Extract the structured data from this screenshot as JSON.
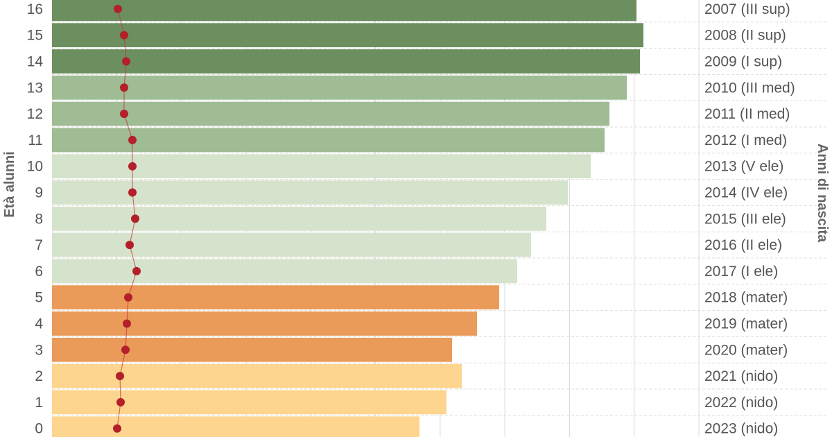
{
  "chart_data": {
    "type": "bar",
    "orientation": "horizontal",
    "left_axis_title": "Età alunni",
    "right_axis_title": "Anni di nascita",
    "rows": [
      {
        "age": "16",
        "birth": "2007 (III sup)",
        "value": 843,
        "line": 95,
        "group": "sup"
      },
      {
        "age": "15",
        "birth": "2008 (II sup)",
        "value": 853,
        "line": 104,
        "group": "sup"
      },
      {
        "age": "14",
        "birth": "2009 (I sup)",
        "value": 848,
        "line": 107,
        "group": "sup"
      },
      {
        "age": "13",
        "birth": "2010 (III med)",
        "value": 829,
        "line": 104,
        "group": "med"
      },
      {
        "age": "12",
        "birth": "2011 (II med)",
        "value": 804,
        "line": 104,
        "group": "med"
      },
      {
        "age": "11",
        "birth": "2012 (I med)",
        "value": 797,
        "line": 116,
        "group": "med"
      },
      {
        "age": "10",
        "birth": "2013 (V ele)",
        "value": 777,
        "line": 116,
        "group": "ele"
      },
      {
        "age": "9",
        "birth": "2014 (IV ele)",
        "value": 744,
        "line": 116,
        "group": "ele"
      },
      {
        "age": "8",
        "birth": "2015 (III ele)",
        "value": 713,
        "line": 120,
        "group": "ele"
      },
      {
        "age": "7",
        "birth": "2016 (II ele)",
        "value": 691,
        "line": 112,
        "group": "ele"
      },
      {
        "age": "6",
        "birth": "2017 (I ele)",
        "value": 671,
        "line": 122,
        "group": "ele"
      },
      {
        "age": "5",
        "birth": "2018 (mater)",
        "value": 645,
        "line": 110,
        "group": "mater"
      },
      {
        "age": "4",
        "birth": "2019 (mater)",
        "value": 613,
        "line": 108,
        "group": "mater"
      },
      {
        "age": "3",
        "birth": "2020 (mater)",
        "value": 577,
        "line": 106,
        "group": "mater"
      },
      {
        "age": "2",
        "birth": "2021 (nido)",
        "value": 591,
        "line": 98,
        "group": "nido"
      },
      {
        "age": "1",
        "birth": "2022 (nido)",
        "value": 569,
        "line": 99,
        "group": "nido"
      },
      {
        "age": "0",
        "birth": "2023 (nido)",
        "value": 530,
        "line": 94,
        "group": "nido"
      }
    ],
    "xlim": [
      0,
      933
    ],
    "grid": true,
    "colors": {
      "sup": "#6b8f5e",
      "med": "#9fbc94",
      "ele": "#d6e3cc",
      "mater": "#ea9a59",
      "nido": "#fdd58f",
      "line": "#c0393b",
      "marker": "#b3202a"
    }
  }
}
